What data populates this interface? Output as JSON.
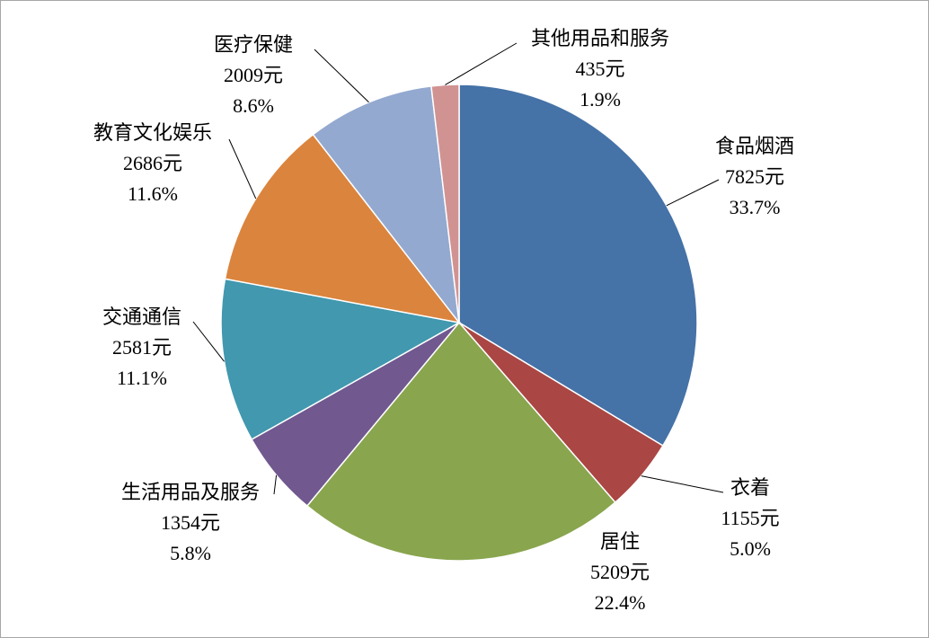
{
  "chart_data": {
    "type": "pie",
    "categories": [
      "食品烟酒",
      "衣着",
      "居住",
      "生活用品及服务",
      "交通通信",
      "教育文化娱乐",
      "医疗保健",
      "其他用品和服务"
    ],
    "values": [
      7825,
      1155,
      5209,
      1354,
      2581,
      2686,
      2009,
      435
    ],
    "value_labels": [
      "7825元",
      "1155元",
      "5209元",
      "1354元",
      "2581元",
      "2686元",
      "2009元",
      "435元"
    ],
    "percentages": [
      33.7,
      5.0,
      22.4,
      5.8,
      11.1,
      11.6,
      8.6,
      1.9
    ],
    "percentage_labels": [
      "33.7%",
      "5.0%",
      "22.4%",
      "5.8%",
      "11.1%",
      "11.6%",
      "8.6%",
      "1.9%"
    ],
    "colors": [
      "#4572a7",
      "#aa4643",
      "#89a54e",
      "#71588f",
      "#4198af",
      "#db843d",
      "#93a9cf",
      "#d19392"
    ]
  }
}
